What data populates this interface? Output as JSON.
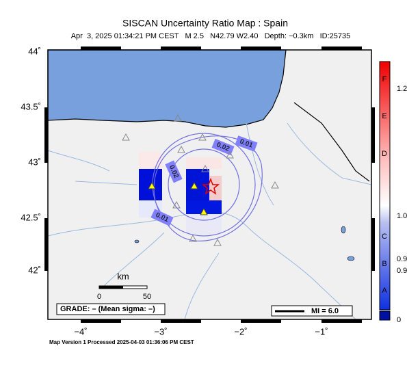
{
  "header": {
    "title": "SISCAN Uncertainty Ratio Map : Spain",
    "subtitle": "Apr  3, 2025 01:34:21 PM CEST   M 2.5   N42.79 W2.40   Depth: −0.3km   ID:25735"
  },
  "map": {
    "lat_labels": [
      "44˚",
      "43.5˚",
      "43˚",
      "42.5˚",
      "42˚"
    ],
    "lon_labels": [
      "−4˚",
      "−3˚",
      "−2˚",
      "−1˚"
    ],
    "contour_labels": [
      "0.01",
      "0.02",
      "0.02",
      "0.01"
    ],
    "scale": {
      "unit": "km",
      "ticks": [
        "0",
        "50"
      ]
    },
    "grade": "GRADE: – (Mean sigma: –)",
    "intensity": "MI = 6.0"
  },
  "colorbar": {
    "labels": [
      "F",
      "1.2",
      "E",
      "D",
      "1.0",
      "C",
      "0.9",
      "B",
      "0.9",
      "A",
      "0"
    ]
  },
  "footer": "Map Version 1 Processed 2025-04-03 01:36:06 PM CEST"
}
